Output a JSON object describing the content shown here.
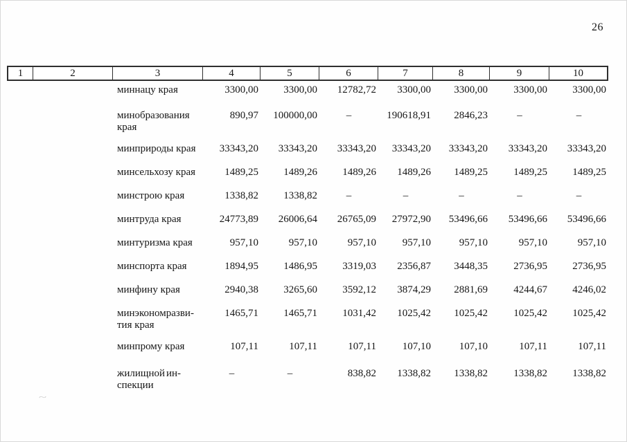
{
  "page": {
    "number": "26"
  },
  "artifact": "~",
  "table": {
    "header_columns": [
      "1",
      "2",
      "3",
      "4",
      "5",
      "6",
      "7",
      "8",
      "9",
      "10"
    ],
    "rows": [
      {
        "name_lines": [
          [
            "миннацу края"
          ]
        ],
        "values": [
          "3300,00",
          "3300,00",
          "12782,72",
          "3300,00",
          "3300,00",
          "3300,00",
          "3300,00"
        ]
      },
      {
        "name_lines": [
          [
            "минобразования"
          ],
          [
            "края"
          ]
        ],
        "values": [
          "890,97",
          "100000,00",
          "–",
          "190618,91",
          "2846,23",
          "–",
          "–"
        ]
      },
      {
        "name_lines": [
          [
            "минприроды края"
          ]
        ],
        "values": [
          "33343,20",
          "33343,20",
          "33343,20",
          "33343,20",
          "33343,20",
          "33343,20",
          "33343,20"
        ]
      },
      {
        "name_lines": [
          [
            "минсельхозу края"
          ]
        ],
        "values": [
          "1489,25",
          "1489,26",
          "1489,26",
          "1489,26",
          "1489,25",
          "1489,25",
          "1489,25"
        ]
      },
      {
        "name_lines": [
          [
            "минстрою края"
          ]
        ],
        "values": [
          "1338,82",
          "1338,82",
          "–",
          "–",
          "–",
          "–",
          "–"
        ]
      },
      {
        "name_lines": [
          [
            "минтруда края"
          ]
        ],
        "values": [
          "24773,89",
          "26006,64",
          "26765,09",
          "27972,90",
          "53496,66",
          "53496,66",
          "53496,66"
        ]
      },
      {
        "name_lines": [
          [
            "минтуризма края"
          ]
        ],
        "values": [
          "957,10",
          "957,10",
          "957,10",
          "957,10",
          "957,10",
          "957,10",
          "957,10"
        ]
      },
      {
        "name_lines": [
          [
            "минспорта края"
          ]
        ],
        "values": [
          "1894,95",
          "1486,95",
          "3319,03",
          "2356,87",
          "3448,35",
          "2736,95",
          "2736,95"
        ]
      },
      {
        "name_lines": [
          [
            "минфину края"
          ]
        ],
        "values": [
          "2940,38",
          "3265,60",
          "3592,12",
          "3874,29",
          "2881,69",
          "4244,67",
          "4246,02"
        ]
      },
      {
        "name_lines": [
          [
            "минэкономразви-"
          ],
          [
            "тия края"
          ]
        ],
        "values": [
          "1465,71",
          "1465,71",
          "1031,42",
          "1025,42",
          "1025,42",
          "1025,42",
          "1025,42"
        ]
      },
      {
        "name_lines": [
          [
            "минпрому края"
          ]
        ],
        "values": [
          "107,11",
          "107,11",
          "107,11",
          "107,10",
          "107,10",
          "107,11",
          "107,11"
        ]
      },
      {
        "name_lines": [
          [
            "жилищной",
            "ин-"
          ],
          [
            "спекции"
          ]
        ],
        "values": [
          "–",
          "–",
          "838,82",
          "1338,82",
          "1338,82",
          "1338,82",
          "1338,82"
        ]
      }
    ]
  }
}
